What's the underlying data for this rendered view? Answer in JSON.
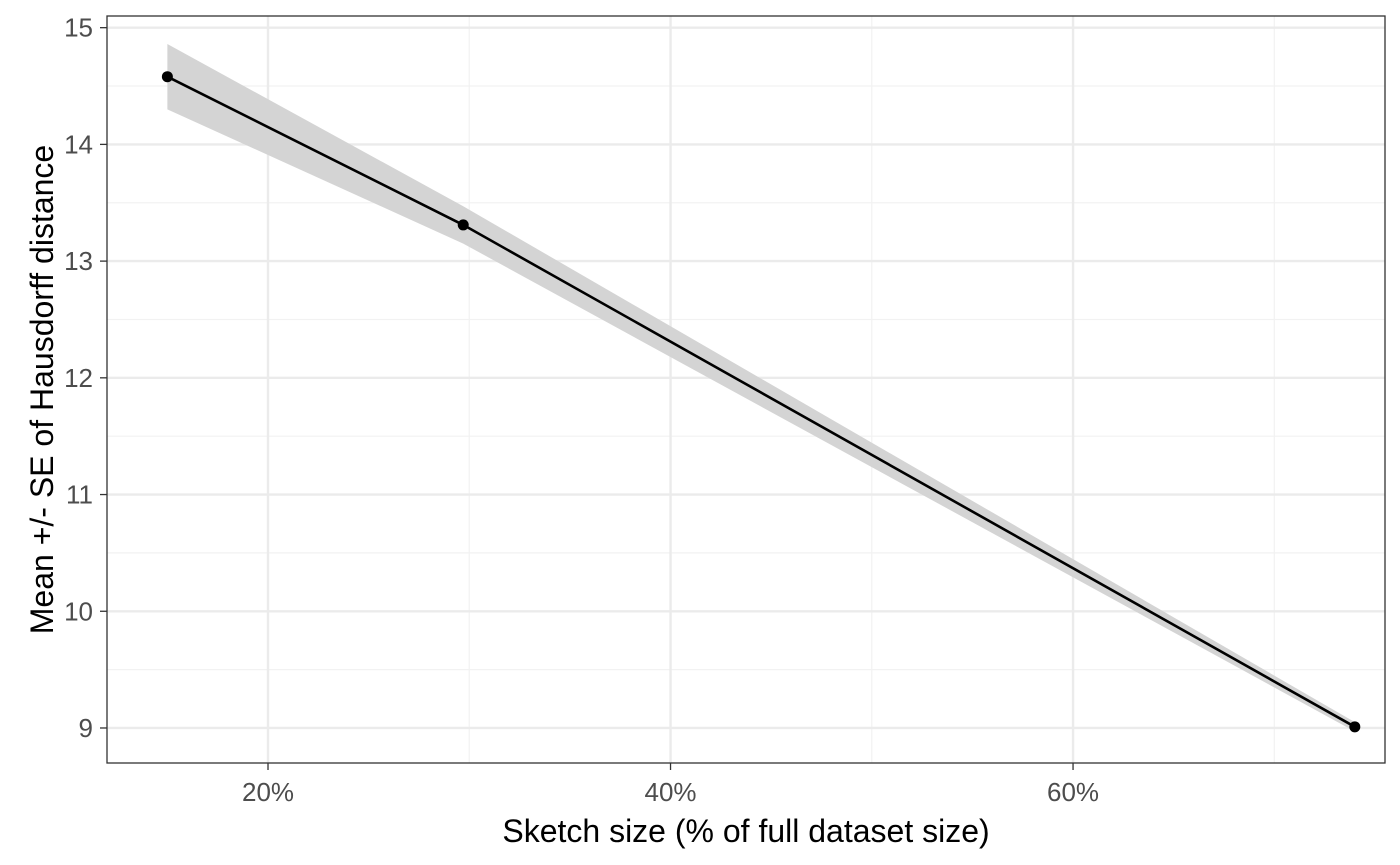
{
  "chart_data": {
    "type": "line",
    "xlabel": "Sketch size (% of full dataset size)",
    "ylabel": "Mean +/- SE of Hausdorff distance",
    "xlim": [
      12,
      75.5
    ],
    "ylim": [
      8.7,
      15.1
    ],
    "x_ticks": [
      20,
      40,
      60
    ],
    "x_tick_labels": [
      "20%",
      "40%",
      "60%"
    ],
    "y_ticks": [
      9,
      10,
      11,
      12,
      13,
      14,
      15
    ],
    "y_tick_labels": [
      "9",
      "10",
      "11",
      "12",
      "13",
      "14",
      "15"
    ],
    "grid": true,
    "legend": "none",
    "series": [
      {
        "x": [
          15,
          29.7,
          74
        ],
        "y": [
          14.58,
          13.31,
          9.01
        ],
        "y_lower": [
          14.3,
          13.15,
          8.97
        ],
        "y_upper": [
          14.86,
          13.47,
          9.05
        ]
      }
    ],
    "colors": {
      "line": "#000000",
      "band": "#d4d4d4",
      "panel_border": "#333333",
      "grid_major": "#ebebeb",
      "grid_minor": "#f2f2f2"
    }
  }
}
